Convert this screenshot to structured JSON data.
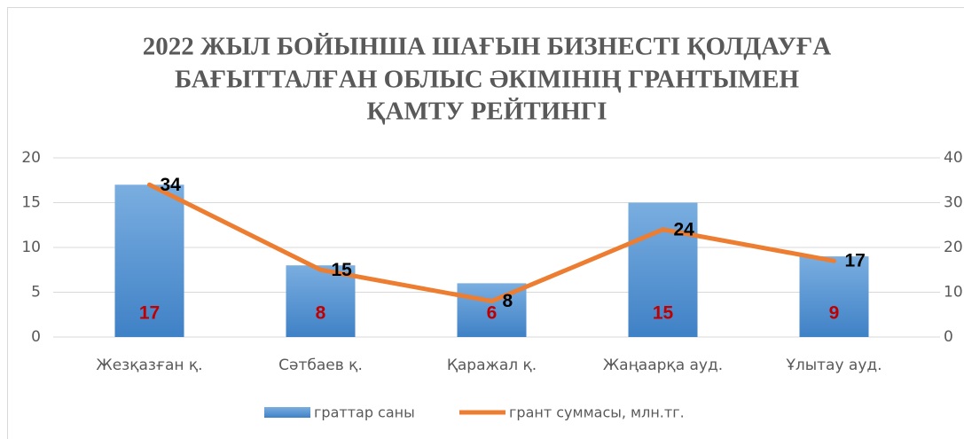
{
  "chart_data": {
    "type": "bar",
    "title": [
      "2022 ЖЫЛ БОЙЫНША ШАҒЫН БИЗНЕСТІ ҚОЛДАУҒА",
      "БАҒЫТТАЛҒАН ОБЛЫС ӘКІМІНІҢ ГРАНТЫМЕН",
      "ҚАМТУ РЕЙТИНГІ"
    ],
    "categories": [
      "Жезқазған қ.",
      "Сәтбаев қ.",
      "Қаражал қ.",
      "Жаңаарқа ауд.",
      "Ұлытау ауд."
    ],
    "series": [
      {
        "name": "граттар саны",
        "type": "bar",
        "color": "#5b9bd5",
        "label_color": "#c00000",
        "values": [
          17,
          8,
          6,
          15,
          9
        ]
      },
      {
        "name": "грант суммасы, млн.тг.",
        "type": "line",
        "axis": "y2",
        "color": "#ed7d31",
        "label_color": "#000000",
        "values": [
          34,
          15,
          8,
          24,
          17
        ]
      }
    ],
    "ylim": [
      0,
      20
    ],
    "yticks": [
      0,
      5,
      10,
      15,
      20
    ],
    "y2lim": [
      0,
      40
    ],
    "y2ticks": [
      0,
      10,
      20,
      30,
      40
    ],
    "grid": true,
    "legend": "bottom"
  }
}
